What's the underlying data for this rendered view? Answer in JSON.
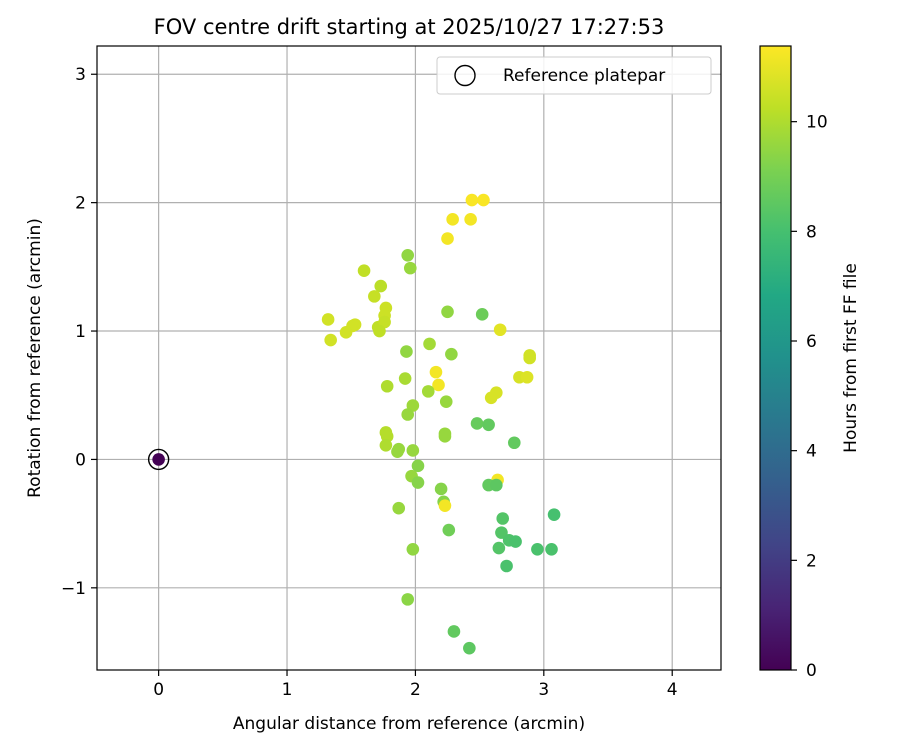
{
  "chart_data": {
    "type": "scatter",
    "title": "FOV centre drift starting at 2025/10/27 17:27:53",
    "xlabel": "Angular distance from reference (arcmin)",
    "ylabel": "Rotation from reference (arcmin)",
    "xlim": [
      -0.48,
      4.38
    ],
    "ylim": [
      -1.64,
      3.22
    ],
    "xticks": [
      0,
      1,
      2,
      3,
      4
    ],
    "xtick_labels": [
      "0",
      "1",
      "2",
      "3",
      "4"
    ],
    "yticks": [
      -1,
      0,
      1,
      2,
      3
    ],
    "ytick_labels": [
      "−1",
      "0",
      "1",
      "2",
      "3"
    ],
    "grid": true,
    "legend": {
      "position": "upper-right",
      "entries": [
        "Reference platepar"
      ]
    },
    "colorbar": {
      "label": "Hours from first FF file",
      "colormap": "viridis",
      "range": [
        0,
        11.38
      ],
      "ticks": [
        0,
        2,
        4,
        6,
        8,
        10
      ],
      "tick_labels": [
        "0",
        "2",
        "4",
        "6",
        "8",
        "10"
      ]
    },
    "reference_point": {
      "x": 0,
      "y": 0,
      "c": 0.02,
      "label": "Reference platepar"
    },
    "points": [
      {
        "x": 2.44,
        "y": 2.02,
        "c": 11.3
      },
      {
        "x": 2.53,
        "y": 2.02,
        "c": 11.3
      },
      {
        "x": 2.29,
        "y": 1.87,
        "c": 11.2
      },
      {
        "x": 2.43,
        "y": 1.87,
        "c": 11.2
      },
      {
        "x": 2.25,
        "y": 1.72,
        "c": 11.2
      },
      {
        "x": 1.94,
        "y": 1.59,
        "c": 9.5
      },
      {
        "x": 1.6,
        "y": 1.47,
        "c": 10.3
      },
      {
        "x": 1.96,
        "y": 1.49,
        "c": 9.6
      },
      {
        "x": 1.73,
        "y": 1.35,
        "c": 10.2
      },
      {
        "x": 1.68,
        "y": 1.27,
        "c": 10.4
      },
      {
        "x": 1.77,
        "y": 1.18,
        "c": 10.5
      },
      {
        "x": 1.76,
        "y": 1.12,
        "c": 10.5
      },
      {
        "x": 2.25,
        "y": 1.15,
        "c": 9.5
      },
      {
        "x": 2.52,
        "y": 1.13,
        "c": 8.8
      },
      {
        "x": 1.32,
        "y": 1.09,
        "c": 10.6
      },
      {
        "x": 1.51,
        "y": 1.04,
        "c": 10.6
      },
      {
        "x": 1.53,
        "y": 1.05,
        "c": 10.6
      },
      {
        "x": 1.71,
        "y": 1.03,
        "c": 10.3
      },
      {
        "x": 1.76,
        "y": 1.07,
        "c": 10.4
      },
      {
        "x": 1.72,
        "y": 1.0,
        "c": 10.3
      },
      {
        "x": 1.46,
        "y": 0.99,
        "c": 10.6
      },
      {
        "x": 1.34,
        "y": 0.93,
        "c": 10.6
      },
      {
        "x": 2.66,
        "y": 1.01,
        "c": 10.9
      },
      {
        "x": 2.11,
        "y": 0.9,
        "c": 9.8
      },
      {
        "x": 1.93,
        "y": 0.84,
        "c": 9.5
      },
      {
        "x": 2.28,
        "y": 0.82,
        "c": 9.5
      },
      {
        "x": 2.89,
        "y": 0.81,
        "c": 10.6
      },
      {
        "x": 2.89,
        "y": 0.79,
        "c": 10.6
      },
      {
        "x": 2.16,
        "y": 0.68,
        "c": 11.2
      },
      {
        "x": 2.81,
        "y": 0.64,
        "c": 10.7
      },
      {
        "x": 2.87,
        "y": 0.64,
        "c": 10.8
      },
      {
        "x": 1.92,
        "y": 0.63,
        "c": 9.9
      },
      {
        "x": 1.78,
        "y": 0.57,
        "c": 10.0
      },
      {
        "x": 2.18,
        "y": 0.58,
        "c": 11.2
      },
      {
        "x": 2.1,
        "y": 0.53,
        "c": 9.8
      },
      {
        "x": 2.63,
        "y": 0.52,
        "c": 10.7
      },
      {
        "x": 2.59,
        "y": 0.48,
        "c": 10.7
      },
      {
        "x": 2.24,
        "y": 0.45,
        "c": 9.6
      },
      {
        "x": 1.98,
        "y": 0.42,
        "c": 9.7
      },
      {
        "x": 1.94,
        "y": 0.35,
        "c": 9.6
      },
      {
        "x": 2.48,
        "y": 0.28,
        "c": 8.7
      },
      {
        "x": 2.57,
        "y": 0.27,
        "c": 8.6
      },
      {
        "x": 1.77,
        "y": 0.21,
        "c": 10.1
      },
      {
        "x": 1.78,
        "y": 0.18,
        "c": 10.1
      },
      {
        "x": 2.23,
        "y": 0.2,
        "c": 9.6
      },
      {
        "x": 2.23,
        "y": 0.18,
        "c": 9.6
      },
      {
        "x": 2.77,
        "y": 0.13,
        "c": 8.6
      },
      {
        "x": 1.77,
        "y": 0.11,
        "c": 10.0
      },
      {
        "x": 1.87,
        "y": 0.08,
        "c": 9.6
      },
      {
        "x": 1.86,
        "y": 0.06,
        "c": 9.6
      },
      {
        "x": 1.98,
        "y": 0.07,
        "c": 9.6
      },
      {
        "x": 2.02,
        "y": -0.05,
        "c": 9.3
      },
      {
        "x": 1.97,
        "y": -0.13,
        "c": 9.6
      },
      {
        "x": 2.64,
        "y": -0.16,
        "c": 11.2
      },
      {
        "x": 2.02,
        "y": -0.18,
        "c": 9.3
      },
      {
        "x": 2.57,
        "y": -0.2,
        "c": 8.6
      },
      {
        "x": 2.63,
        "y": -0.2,
        "c": 8.5
      },
      {
        "x": 2.2,
        "y": -0.23,
        "c": 9.3
      },
      {
        "x": 2.22,
        "y": -0.33,
        "c": 9.3
      },
      {
        "x": 2.23,
        "y": -0.36,
        "c": 11.2
      },
      {
        "x": 1.87,
        "y": -0.38,
        "c": 9.6
      },
      {
        "x": 3.08,
        "y": -0.43,
        "c": 8.0
      },
      {
        "x": 2.68,
        "y": -0.46,
        "c": 8.3
      },
      {
        "x": 2.26,
        "y": -0.55,
        "c": 8.9
      },
      {
        "x": 2.67,
        "y": -0.57,
        "c": 8.3
      },
      {
        "x": 2.73,
        "y": -0.63,
        "c": 8.2
      },
      {
        "x": 2.78,
        "y": -0.64,
        "c": 8.1
      },
      {
        "x": 2.65,
        "y": -0.69,
        "c": 8.3
      },
      {
        "x": 2.95,
        "y": -0.7,
        "c": 8.1
      },
      {
        "x": 3.06,
        "y": -0.7,
        "c": 8.1
      },
      {
        "x": 1.98,
        "y": -0.7,
        "c": 9.5
      },
      {
        "x": 2.71,
        "y": -0.83,
        "c": 8.1
      },
      {
        "x": 1.94,
        "y": -1.09,
        "c": 9.4
      },
      {
        "x": 2.3,
        "y": -1.34,
        "c": 8.6
      },
      {
        "x": 2.42,
        "y": -1.47,
        "c": 8.5
      }
    ]
  }
}
